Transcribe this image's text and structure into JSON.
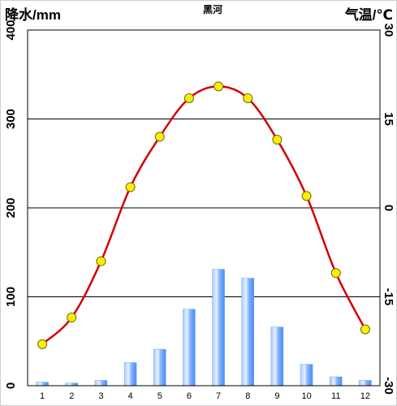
{
  "chart_data": {
    "type": "bar+line",
    "title": "黑河",
    "left_axis": {
      "label": "降水/mm",
      "ticks": [
        "0",
        "100",
        "200",
        "300",
        "400"
      ],
      "ylim": [
        0,
        400
      ]
    },
    "right_axis": {
      "label": "气温/℃",
      "ticks": [
        "-30",
        "-15",
        "0",
        "15",
        "30"
      ],
      "ylim": [
        -30,
        30
      ]
    },
    "categories": [
      "1",
      "2",
      "3",
      "4",
      "5",
      "6",
      "7",
      "8",
      "9",
      "10",
      "11",
      "12"
    ],
    "series": [
      {
        "type": "bar",
        "axis": "left",
        "values": [
          4,
          3,
          6,
          26,
          41,
          86,
          131,
          121,
          66,
          24,
          10,
          6
        ],
        "color": "#7fb2ff"
      },
      {
        "type": "line",
        "axis": "right",
        "values": [
          -23,
          -18.5,
          -9,
          3.5,
          12,
          18.5,
          20.5,
          18.5,
          11.5,
          2,
          -11,
          -20.5
        ],
        "color": "#d40000",
        "marker_color": "#ffee00"
      }
    ],
    "grid": {
      "horizontal": true,
      "vertical": false
    }
  }
}
